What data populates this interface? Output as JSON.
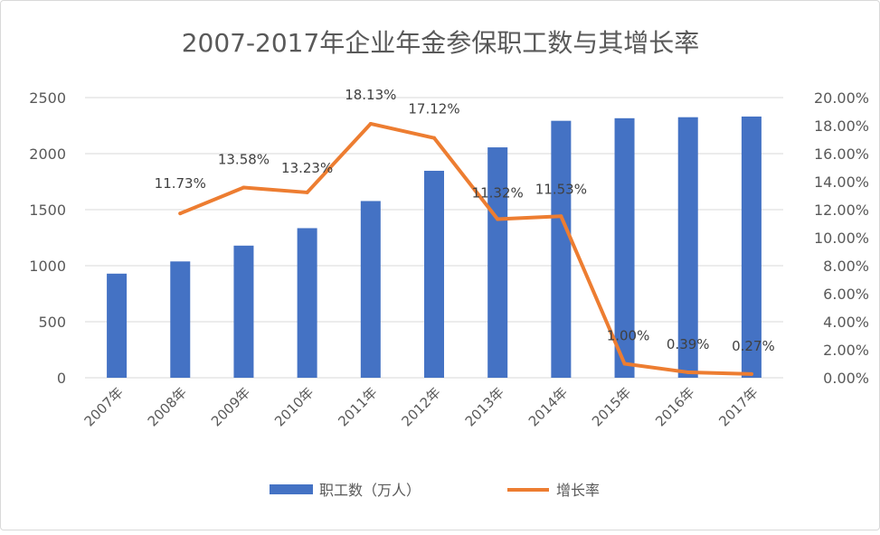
{
  "chart_data": {
    "type": "bar",
    "title": "2007-2017年企业年金参保职工数与其增长率",
    "categories": [
      "2007年",
      "2008年",
      "2009年",
      "2010年",
      "2011年",
      "2012年",
      "2013年",
      "2014年",
      "2015年",
      "2016年",
      "2017年"
    ],
    "series": [
      {
        "name": "职工数（万人）",
        "type": "bar",
        "axis": "left",
        "color": "#4472C4",
        "values": [
          929,
          1038,
          1179,
          1335,
          1577,
          1847,
          2056,
          2293,
          2316,
          2325,
          2331
        ]
      },
      {
        "name": "增长率",
        "type": "line",
        "axis": "right",
        "color": "#ED7D31",
        "values": [
          null,
          11.73,
          13.58,
          13.23,
          18.13,
          17.12,
          11.32,
          11.53,
          1.0,
          0.39,
          0.27
        ],
        "labels": [
          "",
          "11.73%",
          "13.58%",
          "13.23%",
          "18.13%",
          "17.12%",
          "11.32%",
          "11.53%",
          "1.00%",
          "0.39%",
          "0.27%"
        ]
      }
    ],
    "left_axis": {
      "min": 0,
      "max": 2500,
      "ticks": [
        "0",
        "500",
        "1000",
        "1500",
        "2000",
        "2500"
      ]
    },
    "right_axis": {
      "min": 0,
      "max": 20,
      "ticks": [
        "0.00%",
        "2.00%",
        "4.00%",
        "6.00%",
        "8.00%",
        "10.00%",
        "12.00%",
        "14.00%",
        "16.00%",
        "18.00%",
        "20.00%"
      ]
    },
    "grid": true,
    "legend": "bottom"
  }
}
